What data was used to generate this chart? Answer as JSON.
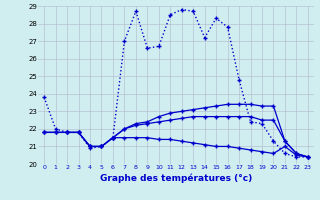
{
  "hours": [
    0,
    1,
    2,
    3,
    4,
    5,
    6,
    7,
    8,
    9,
    10,
    11,
    12,
    13,
    14,
    15,
    16,
    17,
    18,
    19,
    20,
    21,
    22,
    23
  ],
  "temp_dotted": [
    23.8,
    22.0,
    21.8,
    21.8,
    20.9,
    21.0,
    21.5,
    27.0,
    28.7,
    26.6,
    26.7,
    28.5,
    28.8,
    28.7,
    27.2,
    28.3,
    27.8,
    24.8,
    22.4,
    22.3,
    21.3,
    20.6,
    20.4,
    20.4
  ],
  "temp_line2": [
    21.8,
    21.8,
    21.8,
    21.8,
    21.0,
    21.0,
    21.5,
    22.0,
    22.3,
    22.4,
    22.7,
    22.9,
    23.0,
    23.1,
    23.2,
    23.3,
    23.4,
    23.4,
    23.4,
    23.3,
    23.3,
    21.3,
    20.6,
    20.4
  ],
  "temp_line3": [
    21.8,
    21.8,
    21.8,
    21.8,
    21.0,
    21.0,
    21.5,
    22.0,
    22.2,
    22.3,
    22.4,
    22.5,
    22.6,
    22.7,
    22.7,
    22.7,
    22.7,
    22.7,
    22.7,
    22.5,
    22.5,
    21.3,
    20.6,
    20.4
  ],
  "temp_line4": [
    21.8,
    21.8,
    21.8,
    21.8,
    21.0,
    21.0,
    21.5,
    21.5,
    21.5,
    21.5,
    21.4,
    21.4,
    21.3,
    21.2,
    21.1,
    21.0,
    21.0,
    20.9,
    20.8,
    20.7,
    20.6,
    21.0,
    20.5,
    20.4
  ],
  "ylim": [
    20,
    29
  ],
  "yticks": [
    20,
    21,
    22,
    23,
    24,
    25,
    26,
    27,
    28,
    29
  ],
  "line_color": "#0000cc",
  "bg_color": "#d0eef0",
  "grid_color": "#b0b8cc",
  "xlabel": "Graphe des températures (°c)",
  "tick_color": "#0000cc"
}
